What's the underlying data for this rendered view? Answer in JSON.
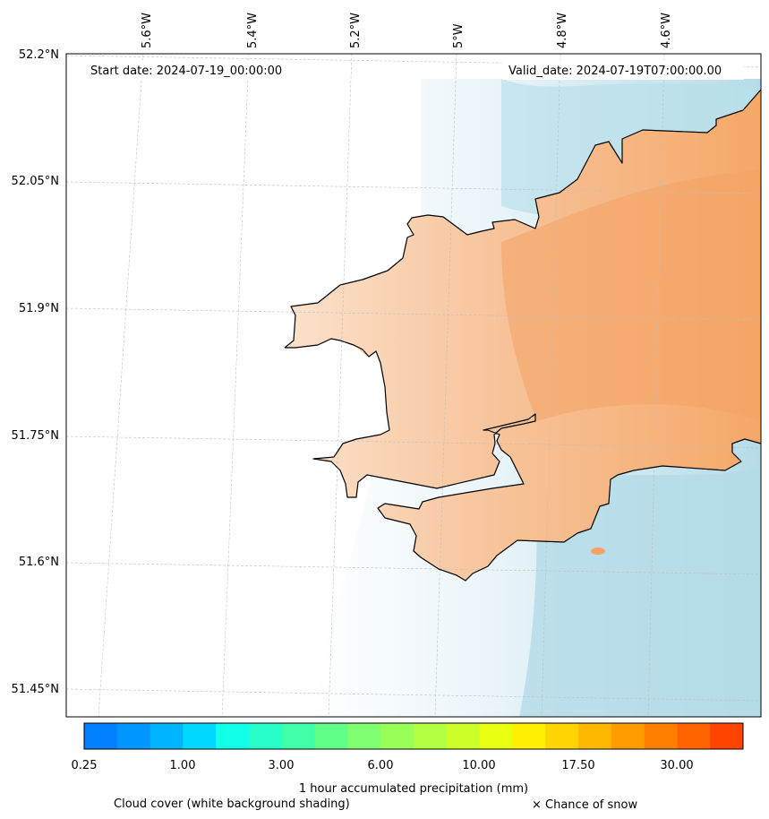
{
  "map": {
    "start_date": "Start date: 2024-07-19_00:00:00",
    "valid_date": "Valid_date: 2024-07-19T07:00:00.00",
    "lat_labels": [
      "52.2°N",
      "52.05°N",
      "51.9°N",
      "51.75°N",
      "51.6°N",
      "51.45°N"
    ],
    "lon_labels": [
      "5.6°W",
      "5.4°W",
      "5.2°W",
      "5°W",
      "4.8°W",
      "4.6°W"
    ],
    "colors": {
      "land_orange": "#f5a36a",
      "sea_blue": "#a8d5e2",
      "coastline": "#000000"
    }
  },
  "colorbar": {
    "title": "1 hour accumulated precipitation (mm)",
    "tick_labels": [
      "0.25",
      "1.00",
      "3.00",
      "6.00",
      "10.00",
      "17.50",
      "30.00"
    ],
    "colors": [
      "#0080ff",
      "#0096ff",
      "#00b4ff",
      "#00d8ff",
      "#10ffe8",
      "#28ffc8",
      "#40ffa8",
      "#60ff88",
      "#80ff70",
      "#98ff58",
      "#b0ff40",
      "#ccff28",
      "#e8ff10",
      "#fff000",
      "#ffd400",
      "#ffb800",
      "#ff9c00",
      "#ff8000",
      "#ff6400",
      "#ff4400"
    ]
  },
  "footer": {
    "cloud_note": "Cloud cover (white background shading)",
    "snow_note": "× Chance of snow"
  }
}
